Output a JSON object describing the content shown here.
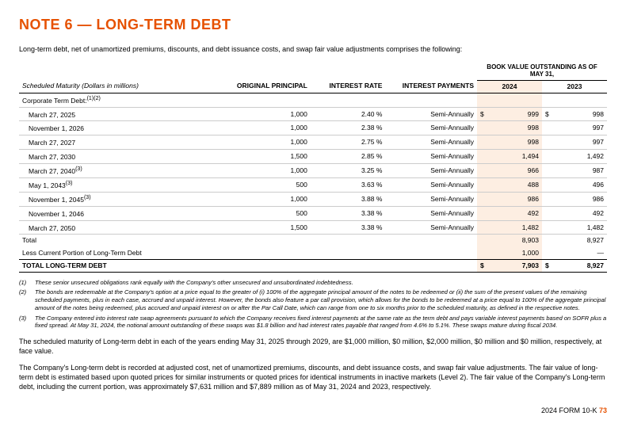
{
  "title": "NOTE 6 — LONG-TERM DEBT",
  "intro": "Long-term debt, net of unamortized premiums, discounts, and debt issuance costs, and swap fair value adjustments comprises the following:",
  "table": {
    "book_value_header": "BOOK VALUE OUTSTANDING AS OF MAY 31,",
    "columns": {
      "maturity": "Scheduled Maturity (Dollars in millions)",
      "principal": "ORIGINAL PRINCIPAL",
      "rate": "INTEREST RATE",
      "payments": "INTEREST PAYMENTS",
      "y2024": "2024",
      "y2023": "2023"
    },
    "section_label": "Corporate Term Debt:",
    "section_sup": "(1)(2)",
    "rows": [
      {
        "maturity": "March 27, 2025",
        "sup": "",
        "principal": "1,000",
        "rate": "2.40 %",
        "payments": "Semi-Annually",
        "v2024": "999",
        "v2023": "998",
        "d24": "$",
        "d23": "$"
      },
      {
        "maturity": "November 1, 2026",
        "sup": "",
        "principal": "1,000",
        "rate": "2.38 %",
        "payments": "Semi-Annually",
        "v2024": "998",
        "v2023": "997",
        "d24": "",
        "d23": ""
      },
      {
        "maturity": "March 27, 2027",
        "sup": "",
        "principal": "1,000",
        "rate": "2.75 %",
        "payments": "Semi-Annually",
        "v2024": "998",
        "v2023": "997",
        "d24": "",
        "d23": ""
      },
      {
        "maturity": "March 27, 2030",
        "sup": "",
        "principal": "1,500",
        "rate": "2.85 %",
        "payments": "Semi-Annually",
        "v2024": "1,494",
        "v2023": "1,492",
        "d24": "",
        "d23": ""
      },
      {
        "maturity": "March 27, 2040",
        "sup": "(3)",
        "principal": "1,000",
        "rate": "3.25 %",
        "payments": "Semi-Annually",
        "v2024": "966",
        "v2023": "987",
        "d24": "",
        "d23": ""
      },
      {
        "maturity": "May 1, 2043",
        "sup": "(3)",
        "principal": "500",
        "rate": "3.63 %",
        "payments": "Semi-Annually",
        "v2024": "488",
        "v2023": "496",
        "d24": "",
        "d23": ""
      },
      {
        "maturity": "November 1, 2045",
        "sup": "(3)",
        "principal": "1,000",
        "rate": "3.88 %",
        "payments": "Semi-Annually",
        "v2024": "986",
        "v2023": "986",
        "d24": "",
        "d23": ""
      },
      {
        "maturity": "November 1, 2046",
        "sup": "",
        "principal": "500",
        "rate": "3.38 %",
        "payments": "Semi-Annually",
        "v2024": "492",
        "v2023": "492",
        "d24": "",
        "d23": ""
      },
      {
        "maturity": "March 27, 2050",
        "sup": "",
        "principal": "1,500",
        "rate": "3.38 %",
        "payments": "Semi-Annually",
        "v2024": "1,482",
        "v2023": "1,482",
        "d24": "",
        "d23": ""
      }
    ],
    "subtotal": {
      "label": "Total",
      "v2024": "8,903",
      "v2023": "8,927"
    },
    "less": {
      "label": "Less Current Portion of Long-Term Debt",
      "v2024": "1,000",
      "v2023": "—"
    },
    "total": {
      "label": "TOTAL LONG-TERM DEBT",
      "v2024": "7,903",
      "v2023": "8,927",
      "d": "$"
    }
  },
  "notes": [
    {
      "num": "(1)",
      "text": "These senior unsecured obligations rank equally with the Company's other unsecured and unsubordinated indebtedness."
    },
    {
      "num": "(2)",
      "text": "The bonds are redeemable at the Company's option at a price equal to the greater of (i) 100% of the aggregate principal amount of the notes to be redeemed or (ii) the sum of the present values of the remaining scheduled payments, plus in each case, accrued and unpaid interest. However, the bonds also feature a par call provision, which allows for the bonds to be redeemed at a price equal to 100% of the aggregate principal amount of the notes being redeemed, plus accrued and unpaid interest on or after the Par Call Date, which can range from one to six months prior to the scheduled maturity, as defined in the respective notes."
    },
    {
      "num": "(3)",
      "text": "The Company entered into interest rate swap agreements pursuant to which the Company receives fixed interest payments at the same rate as the term debt and pays variable interest payments based on SOFR plus a fixed spread. At May 31, 2024, the notional amount outstanding of these swaps was $1.8 billion and had interest rates payable that ranged from 4.6% to 5.1%. These swaps mature during fiscal 2034."
    }
  ],
  "para1": "The scheduled maturity of Long-term debt in each of the years ending May 31, 2025 through 2029, are $1,000 million, $0 million, $2,000 million, $0 million and $0 million, respectively, at face value.",
  "para2": "The Company's Long-term debt is recorded at adjusted cost, net of unamortized premiums, discounts, and debt issuance costs, and swap fair value adjustments. The fair value of long-term debt is estimated based upon quoted prices for similar instruments or quoted prices for identical instruments in inactive markets (Level 2). The fair value of the Company's Long-term debt, including the current portion, was approximately $7,631 million and $7,889 million as of May 31, 2024 and 2023, respectively.",
  "footer": {
    "label": "2024 FORM 10-K",
    "page": "73"
  }
}
